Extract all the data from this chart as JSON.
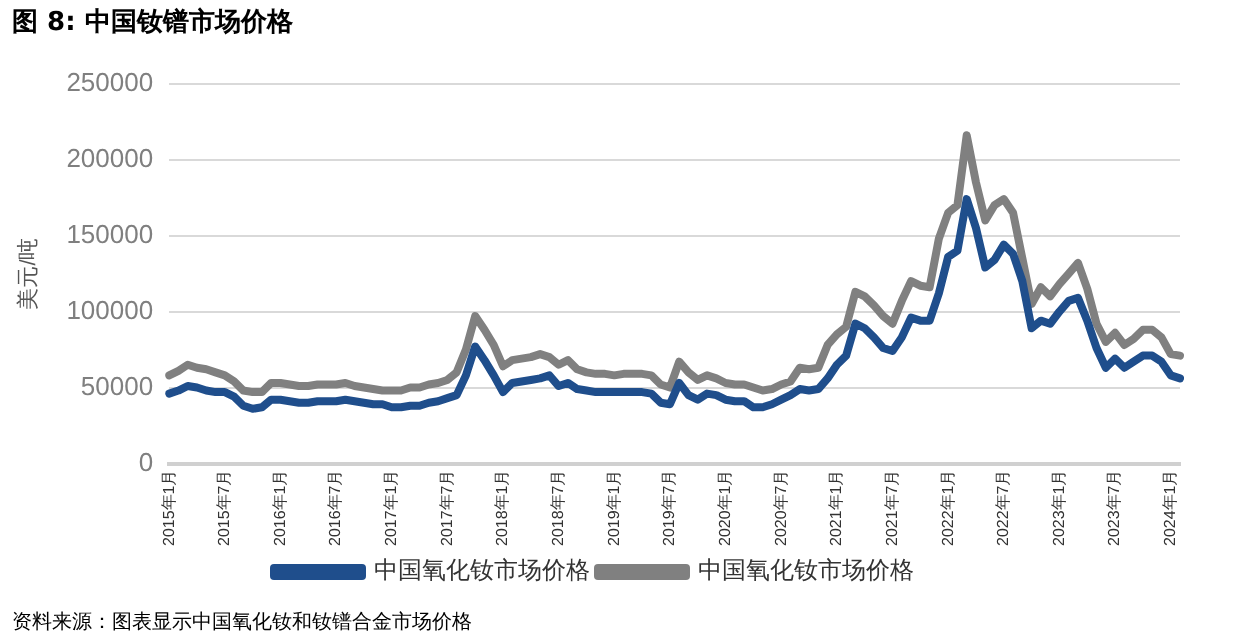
{
  "chart_data": {
    "type": "line",
    "title": "图 8:  中国钕镨市场价格",
    "ylabel": "美元/吨",
    "annotations": [
      "资料来源：图表显示中国氧化钕和钕镨合金市场价格"
    ],
    "categories": [
      "2015年1月",
      null,
      null,
      null,
      null,
      null,
      "2015年7月",
      null,
      null,
      null,
      null,
      null,
      "2016年1月",
      null,
      null,
      null,
      null,
      null,
      "2016年7月",
      null,
      null,
      null,
      null,
      null,
      "2017年1月",
      null,
      null,
      null,
      null,
      null,
      "2017年7月",
      null,
      null,
      null,
      null,
      null,
      "2018年1月",
      null,
      null,
      null,
      null,
      null,
      "2018年7月",
      null,
      null,
      null,
      null,
      null,
      "2019年1月",
      null,
      null,
      null,
      null,
      null,
      "2019年7月",
      null,
      null,
      null,
      null,
      null,
      "2020年1月",
      null,
      null,
      null,
      null,
      null,
      "2020年7月",
      null,
      null,
      null,
      null,
      null,
      "2021年1月",
      null,
      null,
      null,
      null,
      null,
      "2021年7月",
      null,
      null,
      null,
      null,
      null,
      "2022年1月",
      null,
      null,
      null,
      null,
      null,
      "2022年7月",
      null,
      null,
      null,
      null,
      null,
      "2023年1月",
      null,
      null,
      null,
      null,
      null,
      "2023年7月",
      null,
      null,
      null,
      null,
      null,
      "2024年1月",
      null
    ],
    "series": [
      {
        "name": "中国氧化钕市场价格",
        "color": "#1f4e8c",
        "values": [
          46000,
          48000,
          51000,
          50000,
          48000,
          47000,
          47000,
          44000,
          38000,
          36000,
          37000,
          42000,
          42000,
          41000,
          40000,
          40000,
          41000,
          41000,
          41000,
          42000,
          41000,
          40000,
          39000,
          39000,
          37000,
          37000,
          38000,
          38000,
          40000,
          41000,
          43000,
          45000,
          58000,
          77000,
          68000,
          58000,
          47000,
          53000,
          54000,
          55000,
          56000,
          58000,
          51000,
          53000,
          49000,
          48000,
          47000,
          47000,
          47000,
          47000,
          47000,
          47000,
          46000,
          40000,
          39000,
          53000,
          45000,
          42000,
          46000,
          45000,
          42000,
          41000,
          41000,
          37000,
          37000,
          39000,
          42000,
          45000,
          49000,
          48000,
          49000,
          56000,
          65000,
          71000,
          92000,
          89000,
          83000,
          76000,
          74000,
          83000,
          96000,
          94000,
          94000,
          112000,
          136000,
          140000,
          174000,
          155000,
          129000,
          134000,
          144000,
          138000,
          120000,
          89000,
          94000,
          92000,
          100000,
          107000,
          109000,
          94000,
          76000,
          63000,
          69000,
          63000,
          67000,
          71000,
          71000,
          67000,
          58000,
          56000
        ]
      },
      {
        "name": "中国氧化钕市场价格",
        "color": "#808080",
        "values": [
          58000,
          61000,
          65000,
          63000,
          62000,
          60000,
          58000,
          54000,
          48000,
          47000,
          47000,
          53000,
          53000,
          52000,
          51000,
          51000,
          52000,
          52000,
          52000,
          53000,
          51000,
          50000,
          49000,
          48000,
          48000,
          48000,
          50000,
          50000,
          52000,
          53000,
          55000,
          60000,
          75000,
          97000,
          88000,
          78000,
          64000,
          68000,
          69000,
          70000,
          72000,
          70000,
          65000,
          68000,
          62000,
          60000,
          59000,
          59000,
          58000,
          59000,
          59000,
          59000,
          58000,
          52000,
          50000,
          67000,
          60000,
          55000,
          58000,
          56000,
          53000,
          52000,
          52000,
          50000,
          48000,
          49000,
          52000,
          54000,
          63000,
          62000,
          63000,
          78000,
          85000,
          90000,
          113000,
          110000,
          104000,
          97000,
          92000,
          107000,
          120000,
          117000,
          116000,
          148000,
          165000,
          170000,
          216000,
          185000,
          160000,
          170000,
          174000,
          165000,
          135000,
          105000,
          116000,
          110000,
          118000,
          125000,
          132000,
          115000,
          92000,
          80000,
          86000,
          78000,
          82000,
          88000,
          88000,
          83000,
          72000,
          71000
        ]
      }
    ],
    "ylim": [
      0,
      250000
    ],
    "yticks": [
      0,
      50000,
      100000,
      150000,
      200000,
      250000
    ],
    "grid": "y",
    "legend": "bottom",
    "marker": "none",
    "line_style": "solid"
  }
}
